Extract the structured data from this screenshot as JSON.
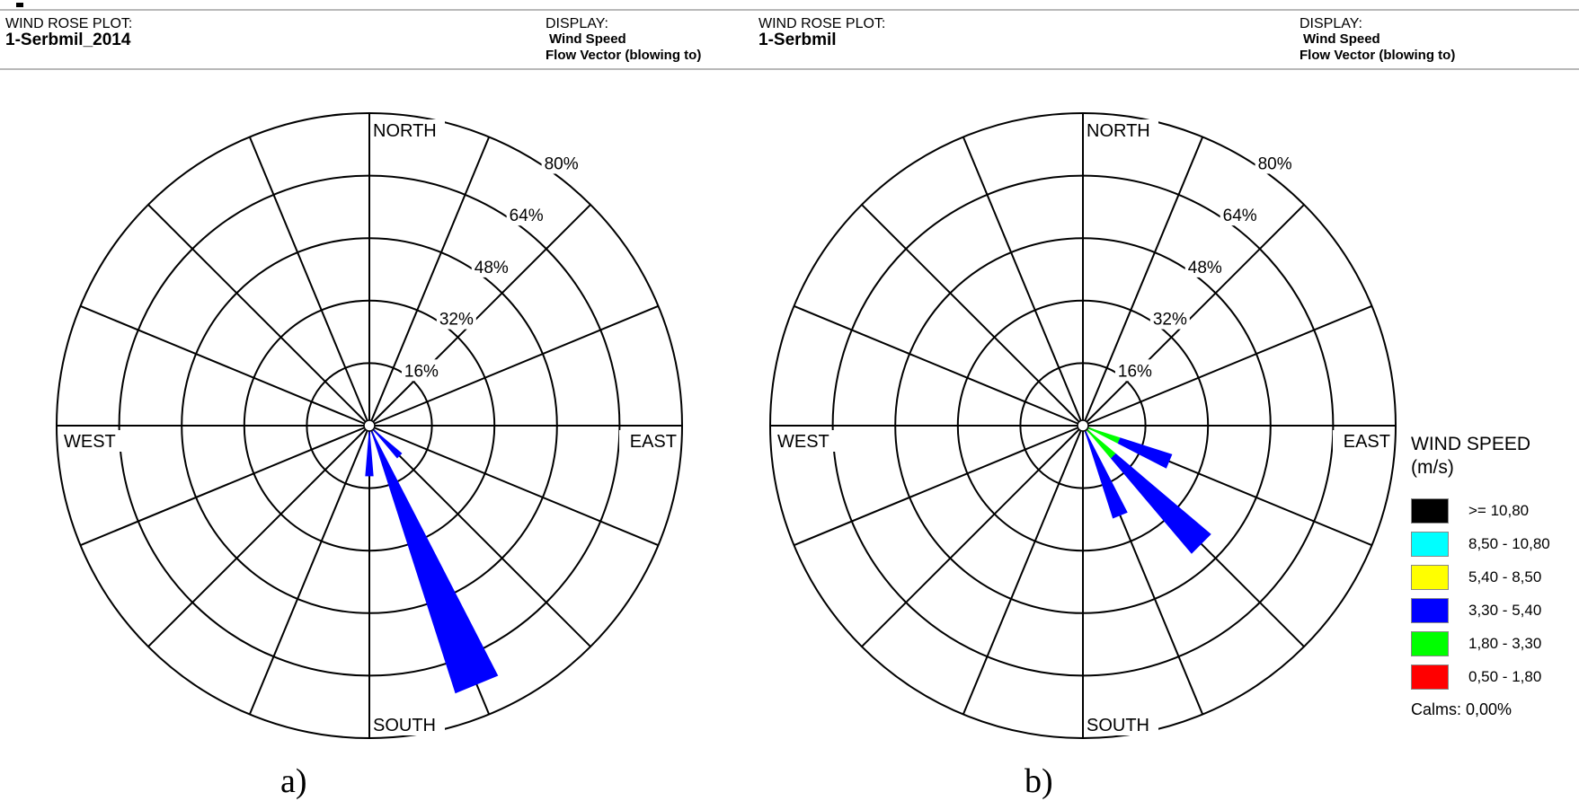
{
  "panels": [
    {
      "id": "a",
      "header": {
        "plot_label": "WIND ROSE PLOT:",
        "station": "1-Serbmil_2014",
        "display_label": "DISPLAY:",
        "display_value": "Wind Speed",
        "display_mode": "Flow Vector (blowing to)"
      },
      "caption": "a)"
    },
    {
      "id": "b",
      "header": {
        "plot_label": "WIND ROSE PLOT:",
        "station": "1-Serbmil",
        "display_label": "DISPLAY:",
        "display_value": "Wind Speed",
        "display_mode": "Flow Vector (blowing to)"
      },
      "caption": "b)"
    }
  ],
  "legend": {
    "title": "WIND SPEED",
    "unit": "(m/s)",
    "items": [
      {
        "label": ">= 10,80",
        "color": "#000000"
      },
      {
        "label": "8,50 - 10,80",
        "color": "#00ffff"
      },
      {
        "label": "5,40 - 8,50",
        "color": "#ffff00"
      },
      {
        "label": "3,30 - 5,40",
        "color": "#0000ff"
      },
      {
        "label": "1,80 - 3,30",
        "color": "#00ff00"
      },
      {
        "label": "0,50 - 1,80",
        "color": "#ff0000"
      }
    ],
    "calms": "Calms: 0,00%"
  },
  "chart_data": [
    {
      "type": "wind-rose",
      "panel": "a",
      "directions": 16,
      "ring_labels": [
        "16%",
        "32%",
        "48%",
        "64%",
        "80%"
      ],
      "ring_values": [
        16,
        32,
        48,
        64,
        80
      ],
      "rmax": 80,
      "compass_labels": {
        "north": "NORTH",
        "south": "SOUTH",
        "east": "EAST",
        "west": "WEST"
      },
      "bins": [
        "0,50 - 1,80",
        "1,80 - 3,30",
        "3,30 - 5,40",
        "5,40 - 8,50",
        "8,50 - 10,80",
        ">= 10,80"
      ],
      "petals": [
        {
          "direction_deg": 157.5,
          "segments": [
            {
              "bin": "3,30 - 5,40",
              "value": 72
            }
          ]
        },
        {
          "direction_deg": 135,
          "segments": [
            {
              "bin": "3,30 - 5,40",
              "value": 11
            }
          ]
        },
        {
          "direction_deg": 180,
          "segments": [
            {
              "bin": "3,30 - 5,40",
              "value": 13
            }
          ]
        }
      ]
    },
    {
      "type": "wind-rose",
      "panel": "b",
      "directions": 16,
      "ring_labels": [
        "16%",
        "32%",
        "48%",
        "64%",
        "80%"
      ],
      "ring_values": [
        16,
        32,
        48,
        64,
        80
      ],
      "rmax": 80,
      "compass_labels": {
        "north": "NORTH",
        "south": "SOUTH",
        "east": "EAST",
        "west": "WEST"
      },
      "bins": [
        "0,50 - 1,80",
        "1,80 - 3,30",
        "3,30 - 5,40",
        "5,40 - 8,50",
        "8,50 - 10,80",
        ">= 10,80"
      ],
      "petals": [
        {
          "direction_deg": 135,
          "segments": [
            {
              "bin": "1,80 - 3,30",
              "value": 11
            },
            {
              "bin": "3,30 - 5,40",
              "value": 32
            }
          ]
        },
        {
          "direction_deg": 112.5,
          "segments": [
            {
              "bin": "1,80 - 3,30",
              "value": 10
            },
            {
              "bin": "3,30 - 5,40",
              "value": 14
            }
          ]
        },
        {
          "direction_deg": 157.5,
          "segments": [
            {
              "bin": "3,30 - 5,40",
              "value": 25
            }
          ]
        }
      ]
    }
  ]
}
